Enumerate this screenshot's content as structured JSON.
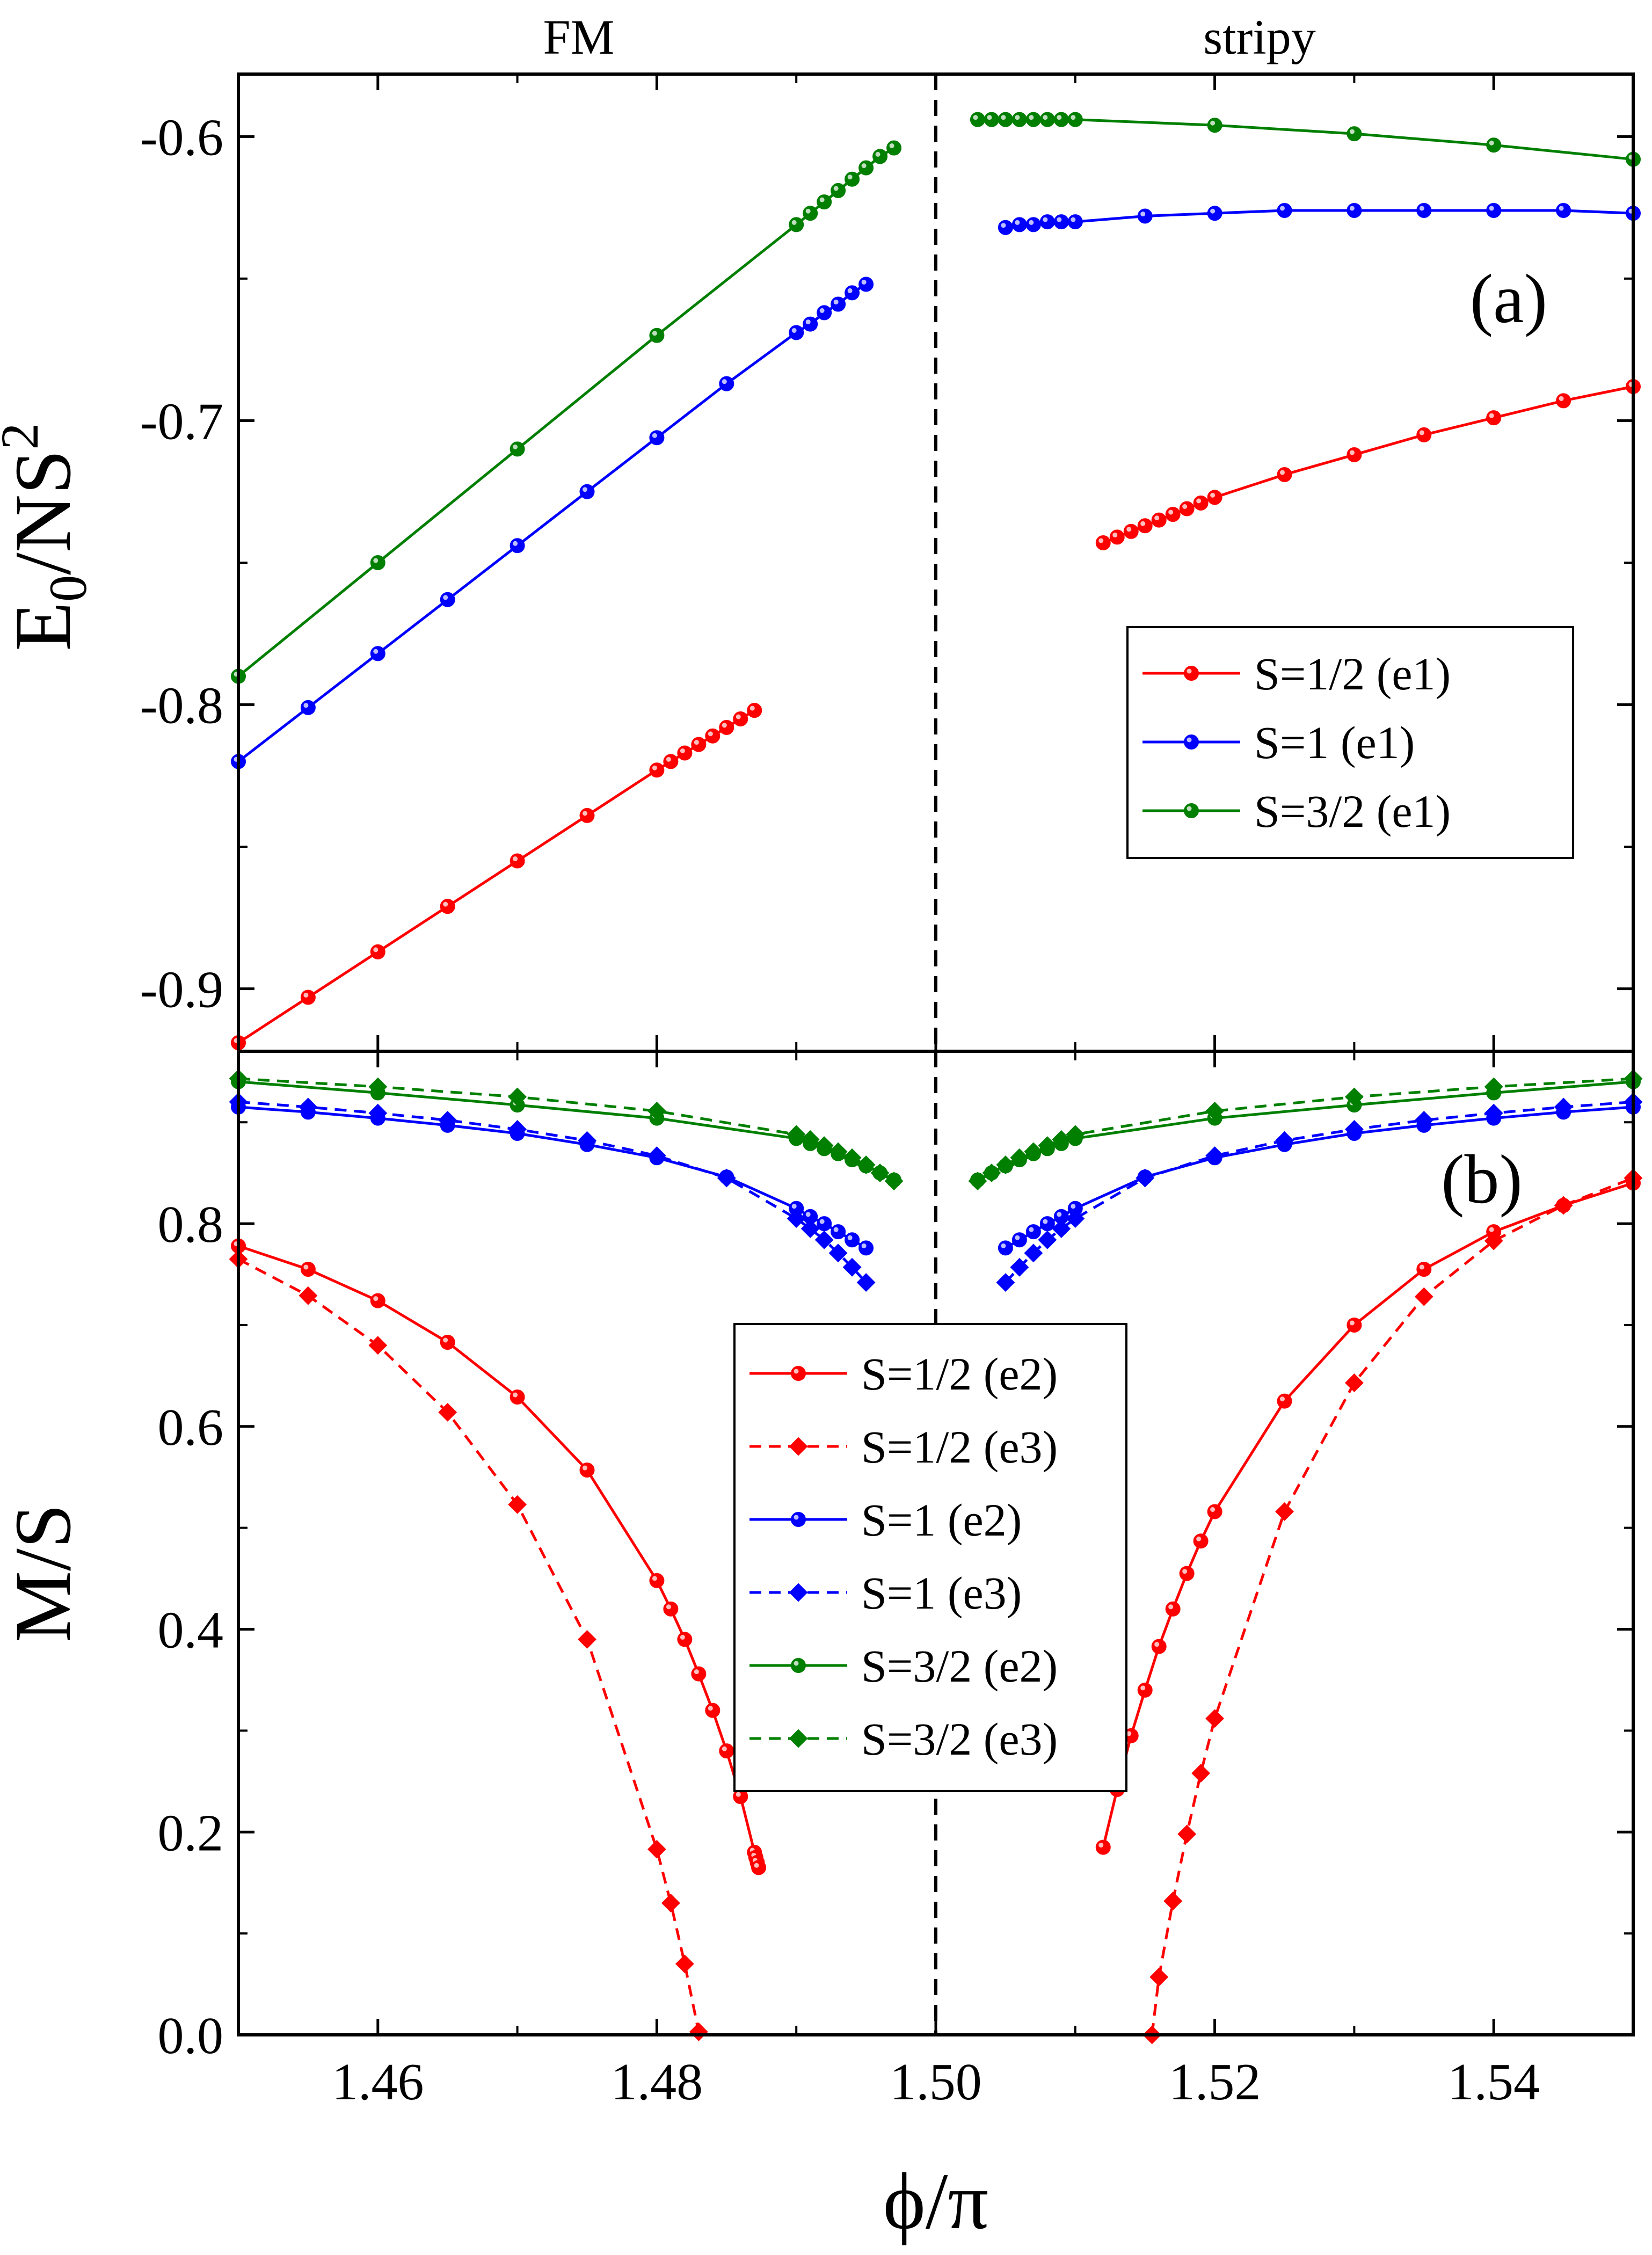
{
  "figure": {
    "phase_labels": [
      "FM",
      "stripy"
    ],
    "xlabel": "ϕ/π",
    "colors": {
      "S12": "#ff0000",
      "S1": "#0000ff",
      "S32": "#007f00",
      "boundary": "#000000"
    }
  },
  "chart_data": [
    {
      "panel": "(a)",
      "type": "line",
      "ylabel_main": "E",
      "ylabel_sub": "0",
      "ylabel_rest": "/NS",
      "ylabel_sup": "2",
      "xlim": [
        1.45,
        1.55
      ],
      "ylim": [
        -0.922,
        -0.578
      ],
      "yticks": [
        -0.9,
        -0.8,
        -0.7,
        -0.6
      ],
      "ytick_labels": [
        "-0.9",
        "-0.8",
        "-0.7",
        "-0.6"
      ],
      "boundary_x": 1.5,
      "series": [
        {
          "name": "S=1/2 (e1)",
          "color": "#ff0000",
          "marker": "circle",
          "dash": "solid",
          "x": [
            1.45,
            1.455,
            1.46,
            1.465,
            1.47,
            1.475,
            1.48,
            1.481,
            1.482,
            1.483,
            1.484,
            1.485,
            1.486,
            1.487
          ],
          "y": [
            -0.919,
            -0.903,
            -0.887,
            -0.871,
            -0.855,
            -0.839,
            -0.823,
            -0.82,
            -0.817,
            -0.814,
            -0.811,
            -0.808,
            -0.805,
            -0.802
          ]
        },
        {
          "name": "S=1/2 (e1)",
          "color": "#ff0000",
          "marker": "circle",
          "dash": "solid",
          "x": [
            1.512,
            1.513,
            1.514,
            1.515,
            1.516,
            1.517,
            1.518,
            1.519,
            1.52,
            1.525,
            1.53,
            1.535,
            1.54,
            1.545,
            1.55
          ],
          "y": [
            -0.743,
            -0.741,
            -0.739,
            -0.737,
            -0.735,
            -0.733,
            -0.731,
            -0.729,
            -0.727,
            -0.719,
            -0.712,
            -0.705,
            -0.699,
            -0.693,
            -0.688
          ]
        },
        {
          "name": "S=1 (e1)",
          "color": "#0000ff",
          "marker": "circle",
          "dash": "solid",
          "x": [
            1.45,
            1.455,
            1.46,
            1.465,
            1.47,
            1.475,
            1.48,
            1.485,
            1.49,
            1.491,
            1.492,
            1.493,
            1.494,
            1.495
          ],
          "y": [
            -0.82,
            -0.801,
            -0.782,
            -0.763,
            -0.744,
            -0.725,
            -0.706,
            -0.687,
            -0.669,
            -0.666,
            -0.662,
            -0.659,
            -0.655,
            -0.652
          ]
        },
        {
          "name": "S=1 (e1)",
          "color": "#0000ff",
          "marker": "circle",
          "dash": "solid",
          "x": [
            1.505,
            1.506,
            1.507,
            1.508,
            1.509,
            1.51,
            1.515,
            1.52,
            1.525,
            1.53,
            1.535,
            1.54,
            1.545,
            1.55
          ],
          "y": [
            -0.632,
            -0.631,
            -0.631,
            -0.63,
            -0.63,
            -0.63,
            -0.628,
            -0.627,
            -0.626,
            -0.626,
            -0.626,
            -0.626,
            -0.626,
            -0.627
          ]
        },
        {
          "name": "S=3/2 (e1)",
          "color": "#007f00",
          "marker": "circle",
          "dash": "solid",
          "x": [
            1.45,
            1.46,
            1.47,
            1.48,
            1.49,
            1.491,
            1.492,
            1.493,
            1.494,
            1.495,
            1.496,
            1.497
          ],
          "y": [
            -0.79,
            -0.75,
            -0.71,
            -0.67,
            -0.631,
            -0.627,
            -0.623,
            -0.619,
            -0.615,
            -0.611,
            -0.607,
            -0.604
          ]
        },
        {
          "name": "S=3/2 (e1)",
          "color": "#007f00",
          "marker": "circle",
          "dash": "solid",
          "x": [
            1.503,
            1.504,
            1.505,
            1.506,
            1.507,
            1.508,
            1.509,
            1.51,
            1.52,
            1.53,
            1.54,
            1.55
          ],
          "y": [
            -0.594,
            -0.594,
            -0.594,
            -0.594,
            -0.594,
            -0.594,
            -0.594,
            -0.594,
            -0.596,
            -0.599,
            -0.603,
            -0.608
          ]
        }
      ],
      "legend": {
        "placement": "right-middle",
        "entries": [
          {
            "label": "S=1/2 (e1)",
            "color": "#ff0000",
            "marker": "circle",
            "dash": "solid"
          },
          {
            "label": "S=1 (e1)",
            "color": "#0000ff",
            "marker": "circle",
            "dash": "solid"
          },
          {
            "label": "S=3/2 (e1)",
            "color": "#007f00",
            "marker": "circle",
            "dash": "solid"
          }
        ]
      }
    },
    {
      "panel": "(b)",
      "type": "line",
      "ylabel": "M/S",
      "xlim": [
        1.45,
        1.55
      ],
      "ylim": [
        0.0,
        0.97
      ],
      "yticks": [
        0.0,
        0.2,
        0.4,
        0.6,
        0.8
      ],
      "ytick_labels": [
        "0.0",
        "0.2",
        "0.4",
        "0.6",
        "0.8"
      ],
      "xticks": [
        1.46,
        1.48,
        1.5,
        1.52,
        1.54
      ],
      "xtick_labels": [
        "1.46",
        "1.48",
        "1.50",
        "1.52",
        "1.54"
      ],
      "boundary_x": 1.5,
      "series": [
        {
          "name": "S=1/2 (e2)",
          "color": "#ff0000",
          "marker": "circle",
          "dash": "solid",
          "x": [
            1.45,
            1.455,
            1.46,
            1.465,
            1.47,
            1.475,
            1.48,
            1.481,
            1.482,
            1.483,
            1.484,
            1.485,
            1.486,
            1.487,
            1.4871,
            1.4872,
            1.4873
          ],
          "y": [
            0.778,
            0.755,
            0.724,
            0.683,
            0.629,
            0.557,
            0.448,
            0.42,
            0.39,
            0.356,
            0.32,
            0.28,
            0.235,
            0.18,
            0.175,
            0.17,
            0.165
          ]
        },
        {
          "name": "S=1/2 (e2)",
          "color": "#ff0000",
          "marker": "circle",
          "dash": "solid",
          "x": [
            1.512,
            1.513,
            1.514,
            1.515,
            1.516,
            1.517,
            1.518,
            1.519,
            1.52,
            1.525,
            1.53,
            1.535,
            1.54,
            1.545,
            1.55
          ],
          "y": [
            0.185,
            0.242,
            0.295,
            0.34,
            0.383,
            0.42,
            0.455,
            0.487,
            0.516,
            0.625,
            0.7,
            0.755,
            0.792,
            0.818,
            0.84
          ]
        },
        {
          "name": "S=1/2 (e3)",
          "color": "#ff0000",
          "marker": "diamond",
          "dash": "dashed",
          "x": [
            1.45,
            1.455,
            1.46,
            1.465,
            1.47,
            1.475,
            1.48,
            1.481,
            1.482,
            1.483
          ],
          "y": [
            0.765,
            0.729,
            0.68,
            0.614,
            0.523,
            0.39,
            0.183,
            0.13,
            0.07,
            0.003
          ]
        },
        {
          "name": "S=1/2 (e3)",
          "color": "#ff0000",
          "marker": "diamond",
          "dash": "dashed",
          "x": [
            1.5155,
            1.516,
            1.517,
            1.518,
            1.519,
            1.52,
            1.525,
            1.53,
            1.535,
            1.54,
            1.545,
            1.55
          ],
          "y": [
            0.0,
            0.057,
            0.132,
            0.198,
            0.258,
            0.312,
            0.516,
            0.643,
            0.728,
            0.783,
            0.818,
            0.845
          ]
        },
        {
          "name": "S=1 (e2)",
          "color": "#0000ff",
          "marker": "circle",
          "dash": "solid",
          "x": [
            1.45,
            1.455,
            1.46,
            1.465,
            1.47,
            1.475,
            1.48,
            1.485,
            1.49,
            1.491,
            1.492,
            1.493,
            1.494,
            1.495
          ],
          "y": [
            0.915,
            0.91,
            0.904,
            0.897,
            0.889,
            0.878,
            0.865,
            0.846,
            0.815,
            0.807,
            0.8,
            0.792,
            0.784,
            0.776
          ]
        },
        {
          "name": "S=1 (e2)",
          "color": "#0000ff",
          "marker": "circle",
          "dash": "solid",
          "x": [
            1.505,
            1.506,
            1.507,
            1.508,
            1.509,
            1.51,
            1.515,
            1.52,
            1.525,
            1.53,
            1.535,
            1.54,
            1.545,
            1.55
          ],
          "y": [
            0.776,
            0.784,
            0.792,
            0.8,
            0.807,
            0.815,
            0.846,
            0.865,
            0.878,
            0.889,
            0.897,
            0.904,
            0.91,
            0.915
          ]
        },
        {
          "name": "S=1 (e3)",
          "color": "#0000ff",
          "marker": "diamond",
          "dash": "dashed",
          "x": [
            1.45,
            1.455,
            1.46,
            1.465,
            1.47,
            1.475,
            1.48,
            1.485,
            1.49,
            1.491,
            1.492,
            1.493,
            1.494,
            1.495
          ],
          "y": [
            0.92,
            0.915,
            0.909,
            0.902,
            0.893,
            0.882,
            0.867,
            0.845,
            0.805,
            0.795,
            0.784,
            0.771,
            0.757,
            0.742
          ]
        },
        {
          "name": "S=1 (e3)",
          "color": "#0000ff",
          "marker": "diamond",
          "dash": "dashed",
          "x": [
            1.505,
            1.506,
            1.507,
            1.508,
            1.509,
            1.51,
            1.515,
            1.52,
            1.525,
            1.53,
            1.535,
            1.54,
            1.545,
            1.55
          ],
          "y": [
            0.742,
            0.757,
            0.771,
            0.784,
            0.795,
            0.805,
            0.845,
            0.867,
            0.882,
            0.893,
            0.902,
            0.909,
            0.915,
            0.92
          ]
        },
        {
          "name": "S=3/2 (e2)",
          "color": "#007f00",
          "marker": "circle",
          "dash": "solid",
          "x": [
            1.45,
            1.46,
            1.47,
            1.48,
            1.49,
            1.491,
            1.492,
            1.493,
            1.494,
            1.495,
            1.496,
            1.497
          ],
          "y": [
            0.94,
            0.929,
            0.917,
            0.904,
            0.884,
            0.879,
            0.874,
            0.869,
            0.863,
            0.857,
            0.85,
            0.843
          ]
        },
        {
          "name": "S=3/2 (e2)",
          "color": "#007f00",
          "marker": "circle",
          "dash": "solid",
          "x": [
            1.503,
            1.504,
            1.505,
            1.506,
            1.507,
            1.508,
            1.509,
            1.51,
            1.52,
            1.53,
            1.54,
            1.55
          ],
          "y": [
            0.843,
            0.85,
            0.857,
            0.863,
            0.869,
            0.874,
            0.879,
            0.884,
            0.904,
            0.917,
            0.929,
            0.94
          ]
        },
        {
          "name": "S=3/2 (e3)",
          "color": "#007f00",
          "marker": "diamond",
          "dash": "dashed",
          "x": [
            1.45,
            1.46,
            1.47,
            1.48,
            1.49,
            1.491,
            1.492,
            1.493,
            1.494,
            1.495,
            1.496,
            1.497
          ],
          "y": [
            0.943,
            0.935,
            0.925,
            0.911,
            0.888,
            0.883,
            0.877,
            0.871,
            0.865,
            0.858,
            0.85,
            0.842
          ]
        },
        {
          "name": "S=3/2 (e3)",
          "color": "#007f00",
          "marker": "diamond",
          "dash": "dashed",
          "x": [
            1.503,
            1.504,
            1.505,
            1.506,
            1.507,
            1.508,
            1.509,
            1.51,
            1.52,
            1.53,
            1.54,
            1.55
          ],
          "y": [
            0.842,
            0.85,
            0.858,
            0.865,
            0.871,
            0.877,
            0.883,
            0.888,
            0.911,
            0.925,
            0.935,
            0.943
          ]
        }
      ],
      "legend": {
        "placement": "center",
        "entries": [
          {
            "label": "S=1/2 (e2)",
            "color": "#ff0000",
            "marker": "circle",
            "dash": "solid"
          },
          {
            "label": "S=1/2 (e3)",
            "color": "#ff0000",
            "marker": "diamond",
            "dash": "dashed"
          },
          {
            "label": "S=1 (e2)",
            "color": "#0000ff",
            "marker": "circle",
            "dash": "solid"
          },
          {
            "label": "S=1 (e3)",
            "color": "#0000ff",
            "marker": "diamond",
            "dash": "dashed"
          },
          {
            "label": "S=3/2 (e2)",
            "color": "#007f00",
            "marker": "circle",
            "dash": "solid"
          },
          {
            "label": "S=3/2 (e3)",
            "color": "#007f00",
            "marker": "diamond",
            "dash": "dashed"
          }
        ]
      }
    }
  ]
}
